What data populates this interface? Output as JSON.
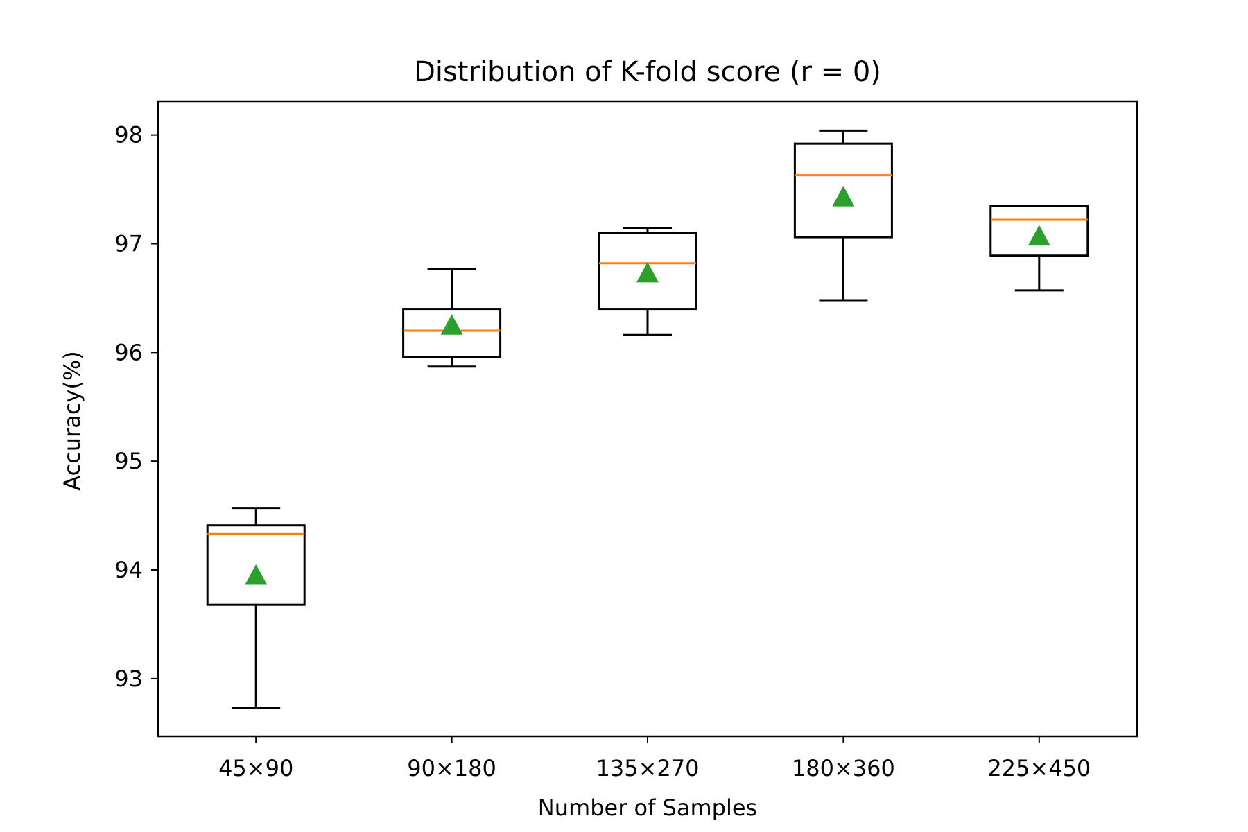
{
  "chart_data": {
    "type": "box",
    "title": "Distribution of K-fold score (r = 0)",
    "xlabel": "Number of Samples",
    "ylabel": "Accuracy(%)",
    "ylim": [
      92.47,
      98.31
    ],
    "yticks": [
      93,
      94,
      95,
      96,
      97,
      98
    ],
    "grid": false,
    "legend": "none",
    "categories": [
      "45×90",
      "90×180",
      "135×270",
      "180×360",
      "225×450"
    ],
    "series": [
      {
        "boxes": [
          {
            "whisker_low": 92.73,
            "q1": 93.68,
            "median": 94.33,
            "q3": 94.41,
            "whisker_high": 94.57,
            "mean": 93.95
          },
          {
            "whisker_low": 95.87,
            "q1": 95.96,
            "median": 96.2,
            "q3": 96.4,
            "whisker_high": 96.77,
            "mean": 96.25
          },
          {
            "whisker_low": 96.16,
            "q1": 96.4,
            "median": 96.82,
            "q3": 97.1,
            "whisker_high": 97.14,
            "mean": 96.73
          },
          {
            "whisker_low": 96.48,
            "q1": 97.06,
            "median": 97.63,
            "q3": 97.92,
            "whisker_high": 98.04,
            "mean": 97.43
          },
          {
            "whisker_low": 96.57,
            "q1": 96.89,
            "median": 97.22,
            "q3": 97.35,
            "whisker_high": 97.35,
            "mean": 97.07
          }
        ]
      }
    ],
    "colors": {
      "box": "#000000",
      "median": "#ff7f0e",
      "mean": "#2ca02c"
    }
  }
}
